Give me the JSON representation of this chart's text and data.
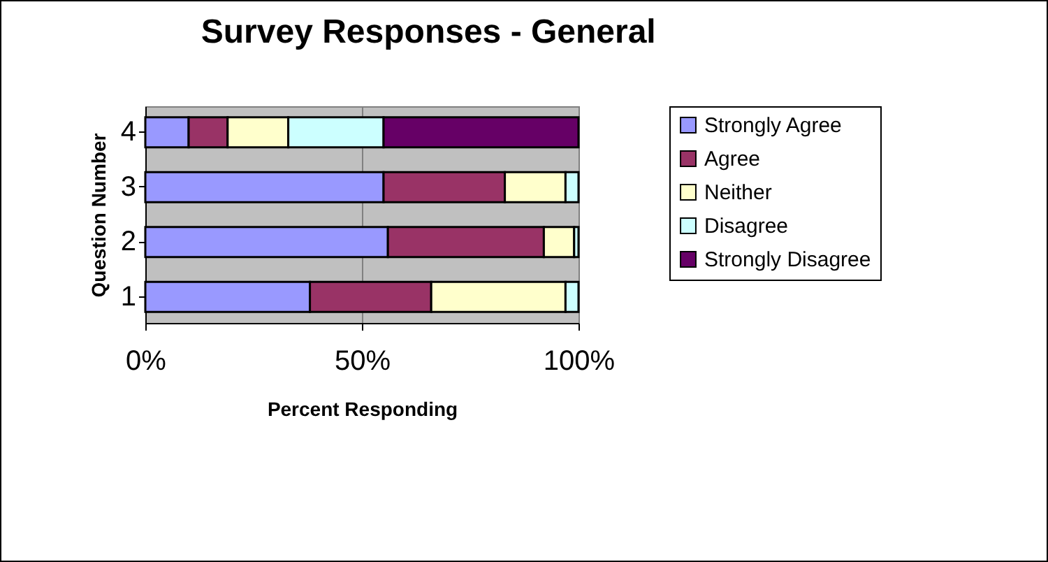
{
  "chart_data": {
    "type": "bar",
    "orientation": "horizontal",
    "stacked": true,
    "title": "Survey Responses - General",
    "xlabel": "Percent Responding",
    "ylabel": "Question Number",
    "categories": [
      "4",
      "3",
      "2",
      "1"
    ],
    "series": [
      {
        "name": "Strongly Agree",
        "color": "#9999ff",
        "values": [
          10,
          55,
          56,
          38
        ]
      },
      {
        "name": "Agree",
        "color": "#993366",
        "values": [
          9,
          28,
          36,
          28
        ]
      },
      {
        "name": "Neither",
        "color": "#ffffcc",
        "values": [
          14,
          14,
          7,
          31
        ]
      },
      {
        "name": "Disagree",
        "color": "#ccffff",
        "values": [
          22,
          3,
          1,
          3
        ]
      },
      {
        "name": "Strongly Disagree",
        "color": "#660066",
        "values": [
          45,
          null,
          null,
          null
        ]
      }
    ],
    "xlim": [
      0,
      100
    ],
    "xticks": [
      {
        "value": 0,
        "label": "0%"
      },
      {
        "value": 50,
        "label": "50%"
      },
      {
        "value": 100,
        "label": "100%"
      }
    ],
    "grid": "x",
    "legend": "right"
  }
}
